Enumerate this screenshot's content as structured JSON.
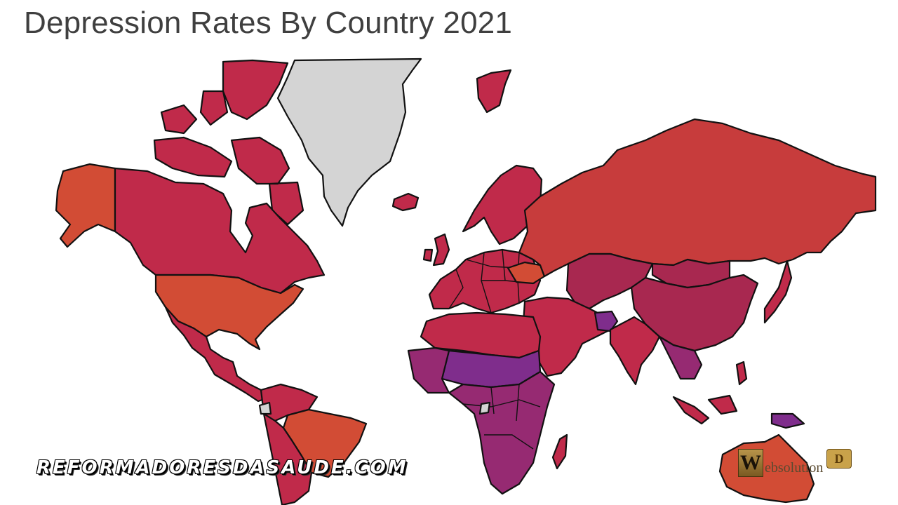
{
  "title": "Depression Rates By Country 2021",
  "colors": {
    "background": "#ffffff",
    "no_data": "#d4d4d4",
    "high_orange": "#d24c35",
    "red": "#c73c3c",
    "crimson": "#c02a4a",
    "deep_crimson": "#a82850",
    "magenta": "#962a72",
    "purple": "#7f2d8c"
  },
  "watermarks": {
    "left_text": "REFORMADORESDASAUDE.COM",
    "right_logo_letter": "W",
    "right_text": "ebsolution",
    "right_emblem": "D"
  }
}
